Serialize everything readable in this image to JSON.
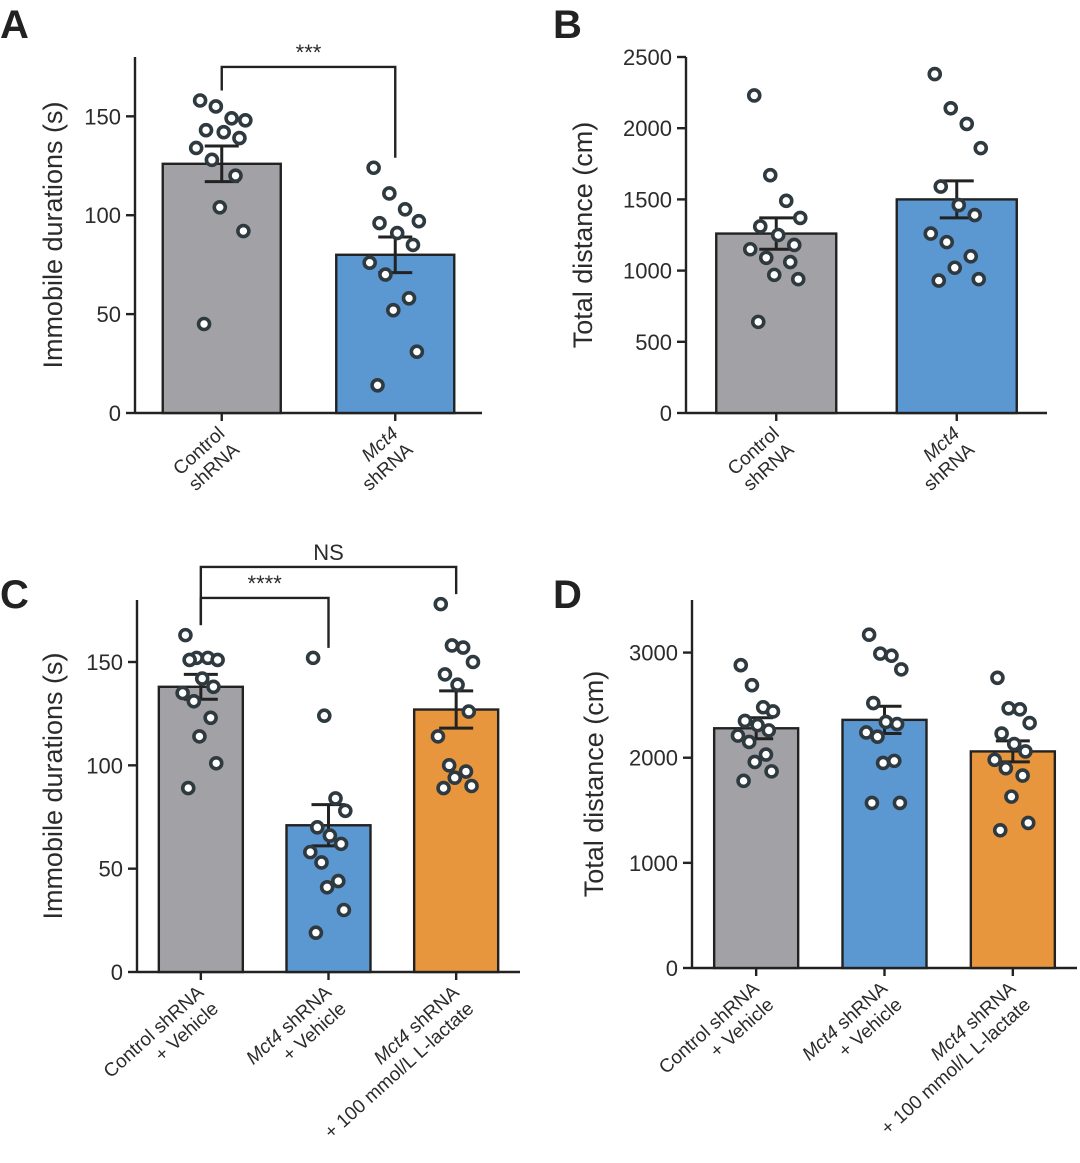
{
  "chart_data": [
    {
      "panel": "A",
      "type": "bar",
      "ylabel": "Immobile durations (s)",
      "ylim": [
        0,
        180
      ],
      "yticks": [
        0,
        50,
        100,
        150
      ],
      "categories": [
        {
          "lines": [
            {
              "parts": [
                {
                  "text": "Control"
                }
              ]
            },
            {
              "parts": [
                {
                  "text": "shRNA"
                }
              ]
            }
          ]
        },
        {
          "lines": [
            {
              "parts": [
                {
                  "text": "Mct4",
                  "italic": true
                }
              ]
            },
            {
              "parts": [
                {
                  "text": "shRNA"
                }
              ]
            }
          ]
        }
      ],
      "colors": [
        "#a2a2a6",
        "#5b97d1"
      ],
      "values": [
        126,
        80
      ],
      "sem": [
        9,
        9
      ],
      "points": [
        [
          158,
          155,
          149,
          148,
          143,
          142,
          139,
          134,
          128,
          120,
          104,
          92,
          45
        ],
        [
          124,
          111,
          103,
          97,
          96,
          91,
          85,
          76,
          70,
          58,
          52,
          31,
          14
        ]
      ],
      "significance": [
        {
          "from": 0,
          "to": 1,
          "label": "***",
          "level": 175
        }
      ]
    },
    {
      "panel": "B",
      "type": "bar",
      "ylabel": "Total distance (cm)",
      "ylim": [
        0,
        2500
      ],
      "yticks": [
        0,
        500,
        1000,
        1500,
        2000,
        2500
      ],
      "categories": [
        {
          "lines": [
            {
              "parts": [
                {
                  "text": "Control"
                }
              ]
            },
            {
              "parts": [
                {
                  "text": "shRNA"
                }
              ]
            }
          ]
        },
        {
          "lines": [
            {
              "parts": [
                {
                  "text": "Mct4",
                  "italic": true
                }
              ]
            },
            {
              "parts": [
                {
                  "text": "shRNA"
                }
              ]
            }
          ]
        }
      ],
      "colors": [
        "#a2a2a6",
        "#5b97d1"
      ],
      "values": [
        1260,
        1500
      ],
      "sem": [
        110,
        130
      ],
      "points": [
        [
          2230,
          1670,
          1490,
          1370,
          1310,
          1250,
          1180,
          1150,
          1090,
          1060,
          970,
          940,
          640
        ],
        [
          2380,
          2140,
          2030,
          1860,
          1590,
          1460,
          1390,
          1260,
          1200,
          1100,
          1020,
          940,
          930
        ]
      ],
      "significance": []
    },
    {
      "panel": "C",
      "type": "bar",
      "ylabel": "Immobile durations (s)",
      "ylim": [
        0,
        180
      ],
      "yticks": [
        0,
        50,
        100,
        150
      ],
      "categories": [
        {
          "lines": [
            {
              "parts": [
                {
                  "text": "Control shRNA"
                }
              ]
            },
            {
              "parts": [
                {
                  "text": "+ Vehicle"
                }
              ]
            }
          ]
        },
        {
          "lines": [
            {
              "parts": [
                {
                  "text": "Mct4",
                  "italic": true
                },
                {
                  "text": " shRNA"
                }
              ]
            },
            {
              "parts": [
                {
                  "text": "+ Vehicle"
                }
              ]
            }
          ]
        },
        {
          "lines": [
            {
              "parts": [
                {
                  "text": "Mct4",
                  "italic": true
                },
                {
                  "text": " shRNA"
                }
              ]
            },
            {
              "parts": [
                {
                  "text": "+ 100 mmol/L L-lactate"
                }
              ]
            }
          ]
        }
      ],
      "colors": [
        "#a2a2a6",
        "#5b97d1",
        "#e8963e"
      ],
      "values": [
        138,
        71,
        127
      ],
      "sem": [
        6,
        10,
        9
      ],
      "points": [
        [
          163,
          152,
          152,
          151,
          151,
          142,
          138,
          135,
          131,
          123,
          114,
          101,
          89
        ],
        [
          152,
          124,
          84,
          78,
          70,
          66,
          62,
          58,
          53,
          44,
          41,
          30,
          19
        ],
        [
          178,
          158,
          157,
          150,
          144,
          139,
          126,
          114,
          100,
          97,
          94,
          90,
          89
        ]
      ],
      "significance": [
        {
          "from": 0,
          "to": 1,
          "label": "****",
          "level": 181
        },
        {
          "from": 0,
          "to": 2,
          "label": "NS",
          "level": 196
        }
      ]
    },
    {
      "panel": "D",
      "type": "bar",
      "ylabel": "Total distance (cm)",
      "ylim": [
        0,
        3500
      ],
      "yticks": [
        0,
        1000,
        2000,
        3000
      ],
      "categories": [
        {
          "lines": [
            {
              "parts": [
                {
                  "text": "Control shRNA"
                }
              ]
            },
            {
              "parts": [
                {
                  "text": "+ Vehicle"
                }
              ]
            }
          ]
        },
        {
          "lines": [
            {
              "parts": [
                {
                  "text": "Mct4",
                  "italic": true
                },
                {
                  "text": " shRNA"
                }
              ]
            },
            {
              "parts": [
                {
                  "text": "+ Vehicle"
                }
              ]
            }
          ]
        },
        {
          "lines": [
            {
              "parts": [
                {
                  "text": "Mct4",
                  "italic": true
                },
                {
                  "text": " shRNA"
                }
              ]
            },
            {
              "parts": [
                {
                  "text": "+ 100 mmol/L L-lactate"
                }
              ]
            }
          ]
        }
      ],
      "colors": [
        "#a2a2a6",
        "#5b97d1",
        "#e8963e"
      ],
      "values": [
        2280,
        2360,
        2060
      ],
      "sem": [
        100,
        130,
        100
      ],
      "points": [
        [
          2880,
          2690,
          2480,
          2440,
          2350,
          2310,
          2260,
          2210,
          2150,
          2030,
          1960,
          1870,
          1780
        ],
        [
          3170,
          2990,
          2970,
          2840,
          2520,
          2340,
          2320,
          2240,
          2200,
          1970,
          1950,
          1570,
          1570
        ],
        [
          2760,
          2470,
          2460,
          2330,
          2230,
          2130,
          2060,
          1980,
          1900,
          1830,
          1630,
          1380,
          1310
        ]
      ],
      "significance": []
    }
  ]
}
